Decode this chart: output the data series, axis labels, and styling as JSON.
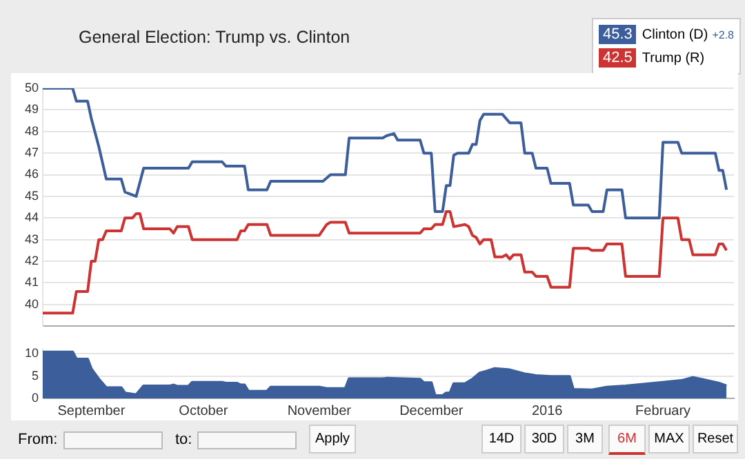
{
  "chart_data": [
    {
      "type": "line",
      "title": "General Election: Trump vs. Clinton",
      "legend": "top right",
      "grid": "y",
      "tick_labels": "y",
      "marker": "none",
      "annotations": [
        "45.3",
        "42.5",
        "+2.8"
      ],
      "xlim": [
        "2015-08-19",
        "2016-02-20"
      ],
      "ylim": [
        39,
        50
      ],
      "yticks": [
        40,
        41,
        42,
        43,
        44,
        45,
        46,
        47,
        48,
        49,
        50
      ],
      "series": [
        {
          "name": "Clinton (D)",
          "color": "#3c5f9b",
          "x": [
            "2015-08-19",
            "2015-08-27",
            "2015-08-28",
            "2015-08-31",
            "2015-09-01",
            "2015-09-03",
            "2015-09-05",
            "2015-09-09",
            "2015-09-10",
            "2015-09-13",
            "2015-09-15",
            "2015-09-27",
            "2015-09-28",
            "2015-10-06",
            "2015-10-07",
            "2015-10-12",
            "2015-10-13",
            "2015-10-18",
            "2015-10-19",
            "2015-11-02",
            "2015-11-04",
            "2015-11-08",
            "2015-11-09",
            "2015-11-18",
            "2015-11-19",
            "2015-11-21",
            "2015-11-22",
            "2015-11-28",
            "2015-11-29",
            "2015-12-01",
            "2015-12-02",
            "2015-12-04",
            "2015-12-05",
            "2015-12-06",
            "2015-12-07",
            "2015-12-08",
            "2015-12-11",
            "2015-12-12",
            "2015-12-13",
            "2015-12-14",
            "2015-12-15",
            "2015-12-20",
            "2015-12-22",
            "2015-12-25",
            "2015-12-26",
            "2015-12-28",
            "2015-12-29",
            "2016-01-01",
            "2016-01-02",
            "2016-01-07",
            "2016-01-08",
            "2016-01-12",
            "2016-01-13",
            "2016-01-16",
            "2016-01-17",
            "2016-01-21",
            "2016-01-22",
            "2016-01-31",
            "2016-02-01",
            "2016-02-05",
            "2016-02-06",
            "2016-02-15",
            "2016-02-16",
            "2016-02-17",
            "2016-02-18"
          ],
          "values": [
            50,
            50,
            49.4,
            49.4,
            48.6,
            47.3,
            45.8,
            45.8,
            45.2,
            45,
            46.3,
            46.3,
            46.6,
            46.6,
            46.4,
            46.4,
            45.3,
            45.3,
            45.7,
            45.7,
            46,
            46,
            47.7,
            47.7,
            47.8,
            47.9,
            47.6,
            47.6,
            47,
            47,
            44.3,
            44.3,
            45.5,
            45.5,
            46.9,
            47,
            47,
            47.4,
            47.4,
            48.5,
            48.8,
            48.8,
            48.4,
            48.4,
            47,
            47,
            46.3,
            46.3,
            45.6,
            45.6,
            44.6,
            44.6,
            44.3,
            44.3,
            45.3,
            45.3,
            44,
            44,
            47.5,
            47.5,
            47,
            47,
            46.2,
            46.2,
            45.3
          ]
        },
        {
          "name": "Trump (R)",
          "color": "#cc3333",
          "x": [
            "2015-08-19",
            "2015-08-27",
            "2015-08-28",
            "2015-08-31",
            "2015-09-01",
            "2015-09-02",
            "2015-09-03",
            "2015-09-04",
            "2015-09-05",
            "2015-09-09",
            "2015-09-10",
            "2015-09-12",
            "2015-09-13",
            "2015-09-14",
            "2015-09-15",
            "2015-09-22",
            "2015-09-23",
            "2015-09-24",
            "2015-09-27",
            "2015-09-28",
            "2015-10-10",
            "2015-10-11",
            "2015-10-12",
            "2015-10-13",
            "2015-10-18",
            "2015-10-19",
            "2015-11-01",
            "2015-11-03",
            "2015-11-04",
            "2015-11-08",
            "2015-11-09",
            "2015-11-28",
            "2015-11-29",
            "2015-12-01",
            "2015-12-02",
            "2015-12-04",
            "2015-12-05",
            "2015-12-06",
            "2015-12-07",
            "2015-12-10",
            "2015-12-11",
            "2015-12-12",
            "2015-12-13",
            "2015-12-14",
            "2015-12-15",
            "2015-12-17",
            "2015-12-18",
            "2015-12-20",
            "2015-12-21",
            "2015-12-22",
            "2015-12-23",
            "2015-12-25",
            "2015-12-26",
            "2015-12-28",
            "2015-12-29",
            "2016-01-01",
            "2016-01-02",
            "2016-01-07",
            "2016-01-08",
            "2016-01-12",
            "2016-01-13",
            "2016-01-16",
            "2016-01-17",
            "2016-01-21",
            "2016-01-22",
            "2016-01-31",
            "2016-02-01",
            "2016-02-05",
            "2016-02-06",
            "2016-02-08",
            "2016-02-09",
            "2016-02-15",
            "2016-02-16",
            "2016-02-17",
            "2016-02-18"
          ],
          "values": [
            39.6,
            39.6,
            40.6,
            40.6,
            42,
            42,
            43,
            43,
            43.4,
            43.4,
            44,
            44,
            44.2,
            44.2,
            43.5,
            43.5,
            43.3,
            43.6,
            43.6,
            43,
            43,
            43.4,
            43.4,
            43.7,
            43.7,
            43.2,
            43.2,
            43.7,
            43.8,
            43.8,
            43.3,
            43.3,
            43.5,
            43.5,
            43.7,
            43.7,
            44.3,
            44.3,
            43.6,
            43.7,
            43.6,
            43.2,
            43.1,
            42.8,
            43,
            43,
            42.2,
            42.2,
            42.3,
            42.1,
            42.3,
            42.3,
            41.5,
            41.5,
            41.3,
            41.3,
            40.8,
            40.8,
            42.6,
            42.6,
            42.5,
            42.5,
            42.8,
            42.8,
            41.3,
            41.3,
            44,
            44,
            43,
            43,
            42.3,
            42.3,
            42.8,
            42.8,
            42.5
          ]
        }
      ]
    },
    {
      "type": "area",
      "color": "#3c5f9b",
      "grid": "y",
      "annotations": [
        "From:",
        "to:",
        "Apply",
        "14D",
        "30D",
        "3M",
        "6M",
        "MAX",
        "Reset"
      ],
      "xlim": [
        "2015-08-19",
        "2016-02-20"
      ],
      "xticks": [
        {
          "value": "2015-09-01",
          "label": "September"
        },
        {
          "value": "2015-10-01",
          "label": "October"
        },
        {
          "value": "2015-11-01",
          "label": "November"
        },
        {
          "value": "2015-12-01",
          "label": "December"
        },
        {
          "value": "2016-01-01",
          "label": "2016"
        },
        {
          "value": "2016-02-01",
          "label": "February"
        }
      ],
      "ylim": [
        0,
        11
      ],
      "yticks": [
        0,
        5,
        10
      ],
      "x": [
        "2015-08-19",
        "2015-08-27",
        "2015-08-28",
        "2015-08-31",
        "2015-09-01",
        "2015-09-03",
        "2015-09-05",
        "2015-09-09",
        "2015-09-10",
        "2015-09-13",
        "2015-09-15",
        "2015-09-22",
        "2015-09-23",
        "2015-09-24",
        "2015-09-27",
        "2015-09-28",
        "2015-10-06",
        "2015-10-07",
        "2015-10-10",
        "2015-10-11",
        "2015-10-12",
        "2015-10-13",
        "2015-10-18",
        "2015-10-19",
        "2015-11-01",
        "2015-11-03",
        "2015-11-08",
        "2015-11-09",
        "2015-11-18",
        "2015-11-19",
        "2015-11-28",
        "2015-11-29",
        "2015-12-01",
        "2015-12-02",
        "2015-12-04",
        "2015-12-05",
        "2015-12-06",
        "2015-12-07",
        "2015-12-10",
        "2015-12-12",
        "2015-12-14",
        "2015-12-15",
        "2015-12-18",
        "2015-12-22",
        "2015-12-26",
        "2015-12-29",
        "2016-01-02",
        "2016-01-07",
        "2016-01-08",
        "2016-01-13",
        "2016-01-17",
        "2016-01-22",
        "2016-02-01",
        "2016-02-06",
        "2016-02-09",
        "2016-02-16",
        "2016-02-18"
      ],
      "values": [
        10.4,
        10.4,
        8.8,
        8.8,
        6.6,
        4.3,
        2.4,
        2.4,
        1.2,
        0.8,
        2.8,
        2.8,
        3,
        2.7,
        2.7,
        3.6,
        3.6,
        3.4,
        3.4,
        3,
        3,
        1.6,
        1.6,
        2.5,
        2.5,
        2.2,
        2.2,
        4.4,
        4.4,
        4.5,
        4.3,
        3.5,
        3.5,
        0.6,
        0.6,
        1.2,
        1.2,
        3.3,
        3.3,
        4.3,
        5.7,
        5.9,
        6.7,
        6.4,
        5.5,
        5.1,
        4.9,
        4.9,
        2,
        1.9,
        2.5,
        2.8,
        3.6,
        4,
        4.7,
        3.4,
        2.8
      ]
    }
  ]
}
